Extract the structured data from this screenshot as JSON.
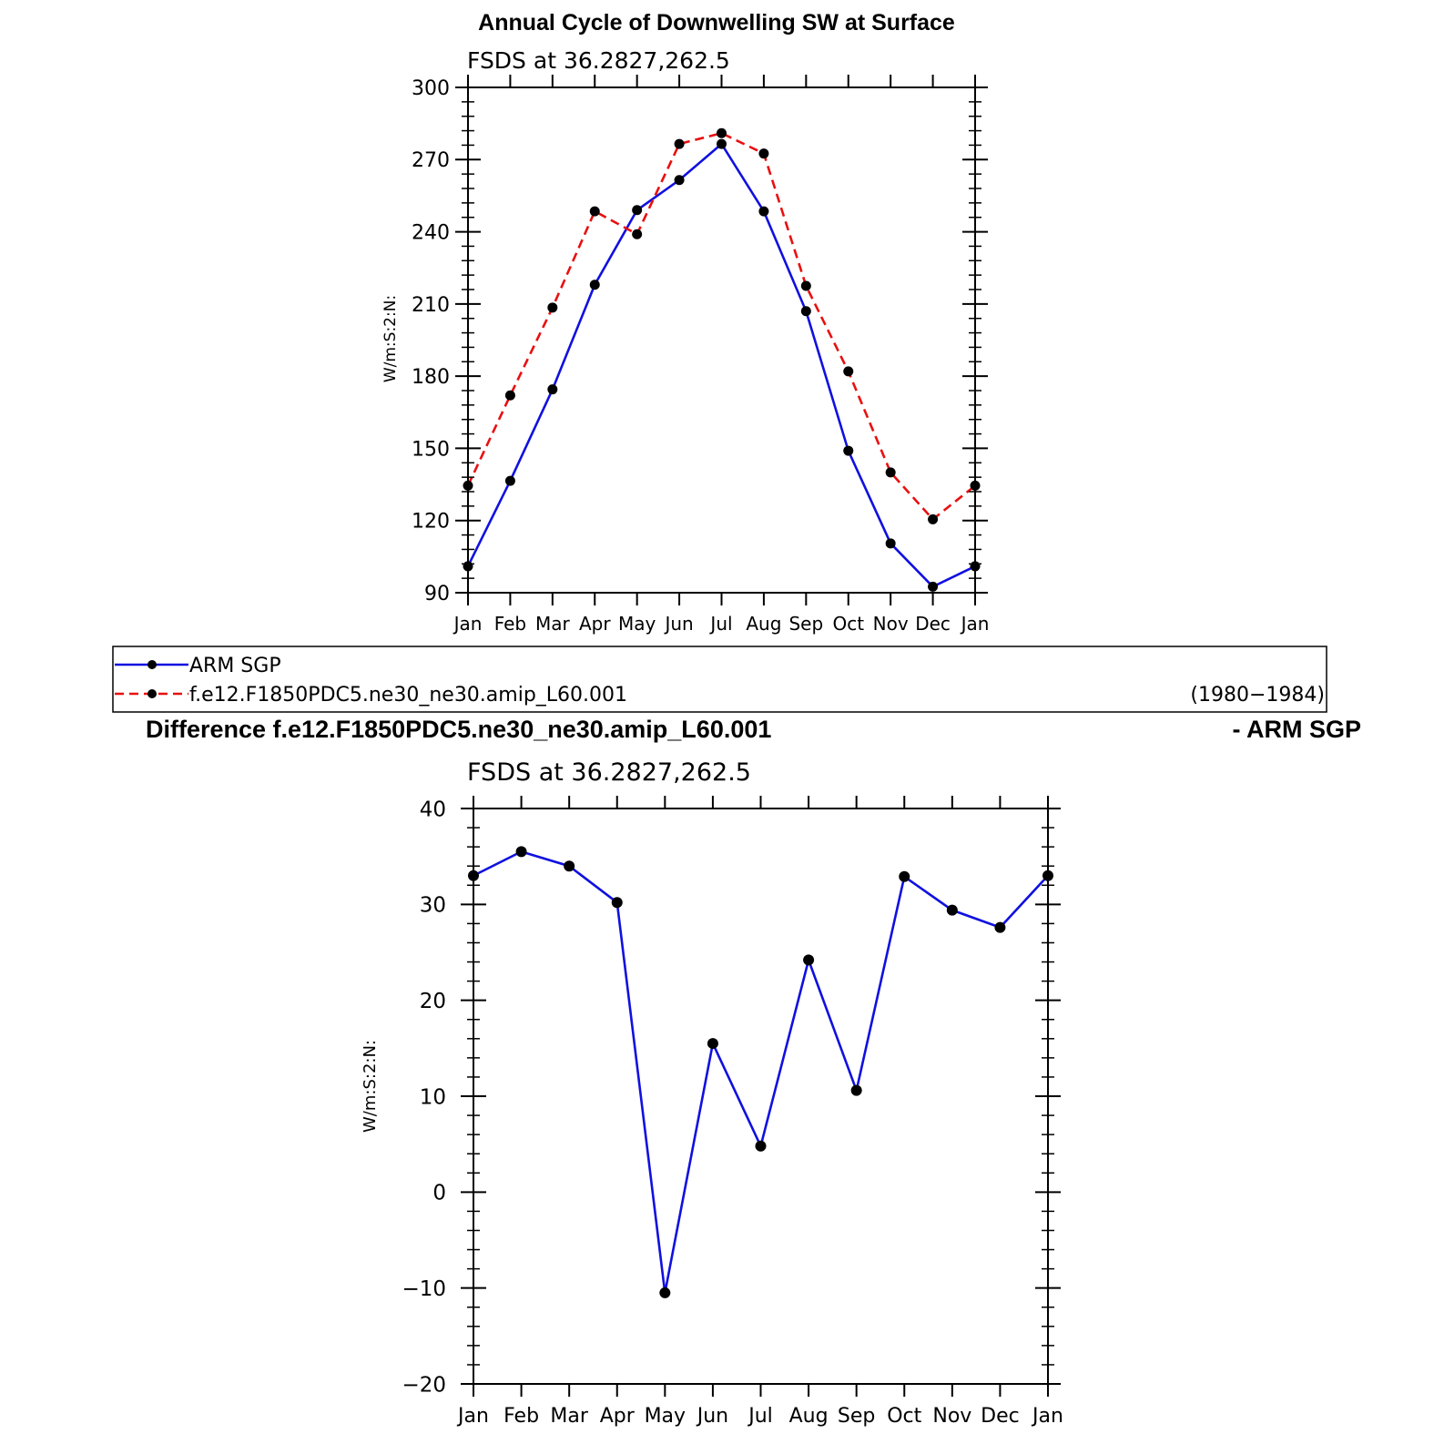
{
  "chart_data": [
    {
      "type": "line",
      "title": "Annual Cycle of Downwelling SW at Surface",
      "subtitle": "FSDS at 36.2827,262.5",
      "ylabel": "W/m:S:2:N:",
      "xlabel": "",
      "ylim": [
        90,
        300
      ],
      "yticks": [
        90,
        120,
        150,
        180,
        210,
        240,
        270,
        300
      ],
      "categories": [
        "Jan",
        "Feb",
        "Mar",
        "Apr",
        "May",
        "Jun",
        "Jul",
        "Aug",
        "Sep",
        "Oct",
        "Nov",
        "Dec",
        "Jan"
      ],
      "series": [
        {
          "name": "ARM SGP",
          "color": "#1010e0",
          "dash": "solid",
          "values": [
            101,
            136.5,
            174.5,
            218,
            249,
            261.5,
            276.5,
            248.5,
            207,
            149,
            110.5,
            92.5,
            101
          ]
        },
        {
          "name": "f.e12.F1850PDC5.ne30_ne30.amip_L60.001",
          "color": "#e81010",
          "dash": "dashed",
          "values": [
            134.5,
            172,
            208.5,
            248.5,
            239,
            276.5,
            281,
            272.5,
            217.5,
            182,
            140,
            120.5,
            134.5
          ]
        }
      ],
      "legend": {
        "placement": "bottom",
        "period": "(1980−1984)"
      }
    },
    {
      "type": "line",
      "title_left": "Difference f.e12.F1850PDC5.ne30_ne30.amip_L60.001",
      "title_right": "- ARM SGP",
      "subtitle": "FSDS at 36.2827,262.5",
      "ylabel": "W/m:S:2:N:",
      "xlabel": "",
      "ylim": [
        -20,
        40
      ],
      "yticks": [
        -20,
        -10,
        0,
        10,
        20,
        30,
        40
      ],
      "categories": [
        "Jan",
        "Feb",
        "Mar",
        "Apr",
        "May",
        "Jun",
        "Jul",
        "Aug",
        "Sep",
        "Oct",
        "Nov",
        "Dec",
        "Jan"
      ],
      "series": [
        {
          "color": "#1010e0",
          "dash": "solid",
          "values": [
            33,
            35.5,
            34,
            30.2,
            -10.5,
            15.5,
            4.8,
            24.2,
            10.6,
            32.9,
            29.4,
            27.6,
            33
          ]
        }
      ]
    }
  ]
}
